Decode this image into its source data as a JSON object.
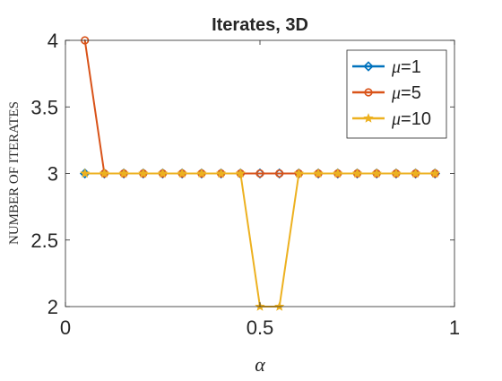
{
  "chart_data": {
    "type": "line",
    "title": "Iterates, 3D",
    "xlabel": "α",
    "ylabel": "NUMBER OF ITERATES",
    "xlim": [
      0,
      1
    ],
    "ylim": [
      2,
      4
    ],
    "x_ticks": [
      "0",
      "0.5",
      "1"
    ],
    "y_ticks": [
      "2",
      "2.5",
      "3",
      "3.5",
      "4"
    ],
    "grid": false,
    "legend_position": "top-right",
    "x": [
      0.05,
      0.1,
      0.15,
      0.2,
      0.25,
      0.3,
      0.35,
      0.4,
      0.45,
      0.5,
      0.55,
      0.6,
      0.65,
      0.7,
      0.75,
      0.8,
      0.85,
      0.9,
      0.95
    ],
    "series": [
      {
        "name": "μ=1",
        "legend_mu": "μ",
        "legend_rest": "=1",
        "color": "#0072BD",
        "marker": "diamond",
        "values": [
          3,
          3,
          3,
          3,
          3,
          3,
          3,
          3,
          3,
          3,
          3,
          3,
          3,
          3,
          3,
          3,
          3,
          3,
          3
        ]
      },
      {
        "name": "μ=5",
        "legend_mu": "μ",
        "legend_rest": "=5",
        "color": "#D95319",
        "marker": "circle",
        "values": [
          4,
          3,
          3,
          3,
          3,
          3,
          3,
          3,
          3,
          3,
          3,
          3,
          3,
          3,
          3,
          3,
          3,
          3,
          3
        ]
      },
      {
        "name": "μ=10",
        "legend_mu": "μ",
        "legend_rest": "=10",
        "color": "#EDB120",
        "marker": "star",
        "values": [
          3,
          3,
          3,
          3,
          3,
          3,
          3,
          3,
          3,
          2,
          2,
          3,
          3,
          3,
          3,
          3,
          3,
          3,
          3
        ]
      }
    ]
  }
}
